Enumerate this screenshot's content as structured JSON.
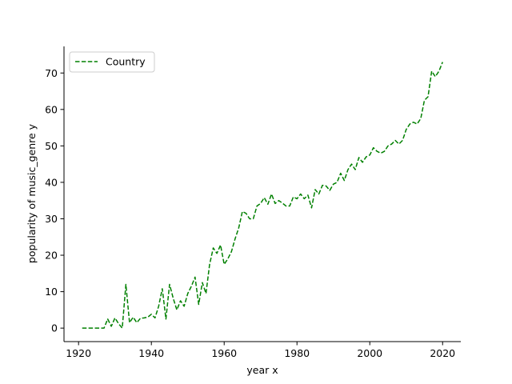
{
  "chart_data": {
    "type": "line",
    "title": "",
    "xlabel": "year x",
    "ylabel": "popularity of music_genre y",
    "xlim": [
      1916,
      2025
    ],
    "ylim": [
      -3.7,
      77.3
    ],
    "xticks": [
      1920,
      1940,
      1960,
      1980,
      2000,
      2020
    ],
    "yticks": [
      0,
      10,
      20,
      30,
      40,
      50,
      60,
      70
    ],
    "grid": false,
    "legend_position": "top-left",
    "series": [
      {
        "name": "Country",
        "color": "#008000",
        "line_style": "dashed",
        "x": [
          1921,
          1922,
          1923,
          1924,
          1925,
          1926,
          1927,
          1928,
          1929,
          1930,
          1931,
          1932,
          1933,
          1934,
          1935,
          1936,
          1937,
          1938,
          1939,
          1940,
          1941,
          1942,
          1943,
          1944,
          1945,
          1946,
          1947,
          1948,
          1949,
          1950,
          1951,
          1952,
          1953,
          1954,
          1955,
          1956,
          1957,
          1958,
          1959,
          1960,
          1961,
          1962,
          1963,
          1964,
          1965,
          1966,
          1967,
          1968,
          1969,
          1970,
          1971,
          1972,
          1973,
          1974,
          1975,
          1976,
          1977,
          1978,
          1979,
          1980,
          1981,
          1982,
          1983,
          1984,
          1985,
          1986,
          1987,
          1988,
          1989,
          1990,
          1991,
          1992,
          1993,
          1994,
          1995,
          1996,
          1997,
          1998,
          1999,
          2000,
          2001,
          2002,
          2003,
          2004,
          2005,
          2006,
          2007,
          2008,
          2009,
          2010,
          2011,
          2012,
          2013,
          2014,
          2015,
          2016,
          2017,
          2018,
          2019,
          2020
        ],
        "y": [
          0,
          0,
          0,
          0,
          0,
          0,
          0,
          2.5,
          0.5,
          2.8,
          1.2,
          0,
          12,
          1.5,
          3,
          1.5,
          2.7,
          2.8,
          3,
          3.8,
          2.8,
          6,
          10.8,
          2.5,
          12,
          8.2,
          5,
          7.5,
          6,
          9.5,
          11.5,
          14,
          6.5,
          12.5,
          9.5,
          17.5,
          22,
          20.5,
          22.8,
          17.5,
          19,
          21,
          24.5,
          27.5,
          32,
          31.5,
          30,
          30,
          33.5,
          34.2,
          35.8,
          34,
          36.8,
          34.2,
          35,
          34.3,
          33.5,
          33.5,
          36,
          35.5,
          36.8,
          35.5,
          36.5,
          33,
          38,
          36.8,
          39.2,
          39,
          37.8,
          39.5,
          40,
          42.5,
          40.5,
          43.5,
          45,
          43.5,
          46.8,
          45.5,
          47,
          47.5,
          49.5,
          48.5,
          48,
          48.5,
          50,
          50.5,
          51.5,
          50.5,
          51.5,
          54.5,
          56,
          56.5,
          56,
          57.5,
          62.5,
          63.5,
          70.5,
          69,
          70.5,
          73
        ]
      }
    ]
  }
}
